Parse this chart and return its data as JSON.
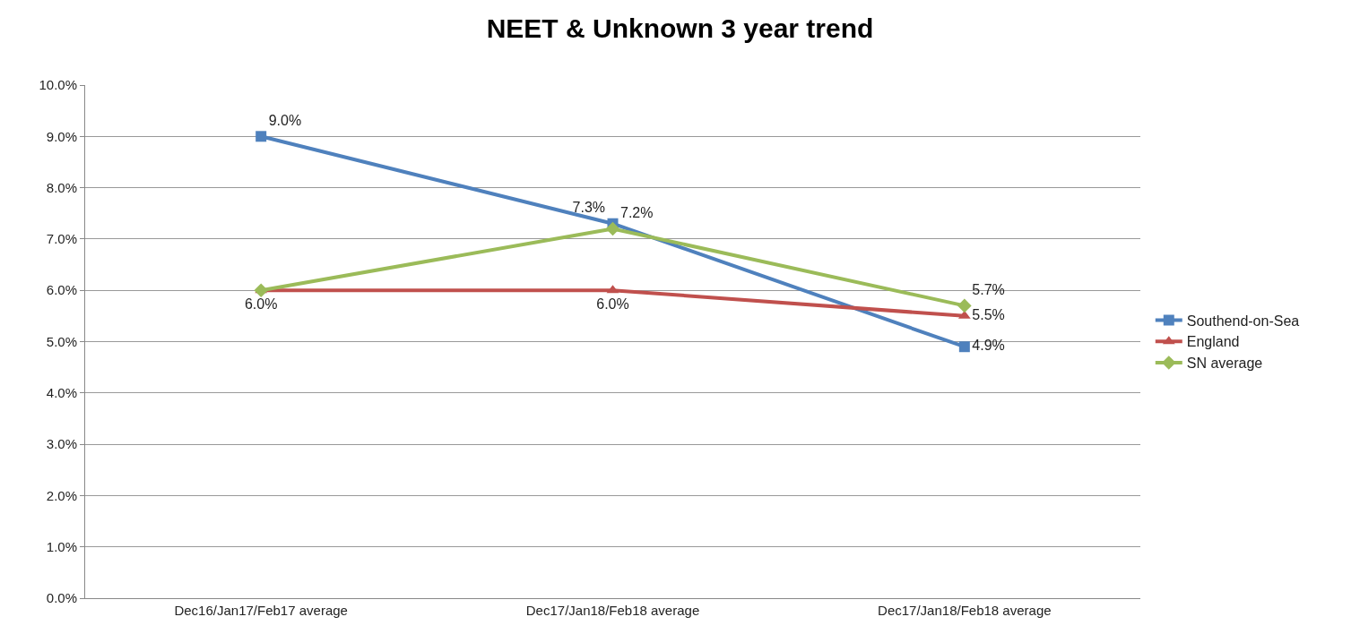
{
  "chart_data": {
    "type": "line",
    "title": "NEET & Unknown 3 year trend",
    "categories": [
      "Dec16/Jan17/Feb17 average",
      "Dec17/Jan18/Feb18 average",
      "Dec17/Jan18/Feb18 average"
    ],
    "series": [
      {
        "name": "Southend-on-Sea",
        "color": "#4f81bd",
        "marker": "square",
        "values": [
          9.0,
          7.3,
          4.9
        ],
        "value_labels": [
          "9.0%",
          "7.3%",
          "4.9%"
        ]
      },
      {
        "name": "England",
        "color": "#c0504d",
        "marker": "triangle",
        "values": [
          6.0,
          6.0,
          5.5
        ],
        "value_labels": [
          "6.0%",
          "6.0%",
          "5.5%"
        ]
      },
      {
        "name": "SN average",
        "color": "#9bbb59",
        "marker": "diamond",
        "values": [
          6.0,
          7.2,
          5.7
        ],
        "value_labels": [
          null,
          "7.2%",
          "5.7%"
        ]
      }
    ],
    "ylim": [
      0,
      10
    ],
    "yticks": [
      {
        "value": 0,
        "label": "0.0%"
      },
      {
        "value": 1,
        "label": "1.0%"
      },
      {
        "value": 2,
        "label": "2.0%"
      },
      {
        "value": 3,
        "label": "3.0%"
      },
      {
        "value": 4,
        "label": "4.0%"
      },
      {
        "value": 5,
        "label": "5.0%"
      },
      {
        "value": 6,
        "label": "6.0%"
      },
      {
        "value": 7,
        "label": "7.0%"
      },
      {
        "value": 8,
        "label": "8.0%"
      },
      {
        "value": 9,
        "label": "9.0%"
      },
      {
        "value": 10,
        "label": "10.0%"
      }
    ],
    "grid": "y",
    "legend": "right",
    "line_style": "solid"
  }
}
